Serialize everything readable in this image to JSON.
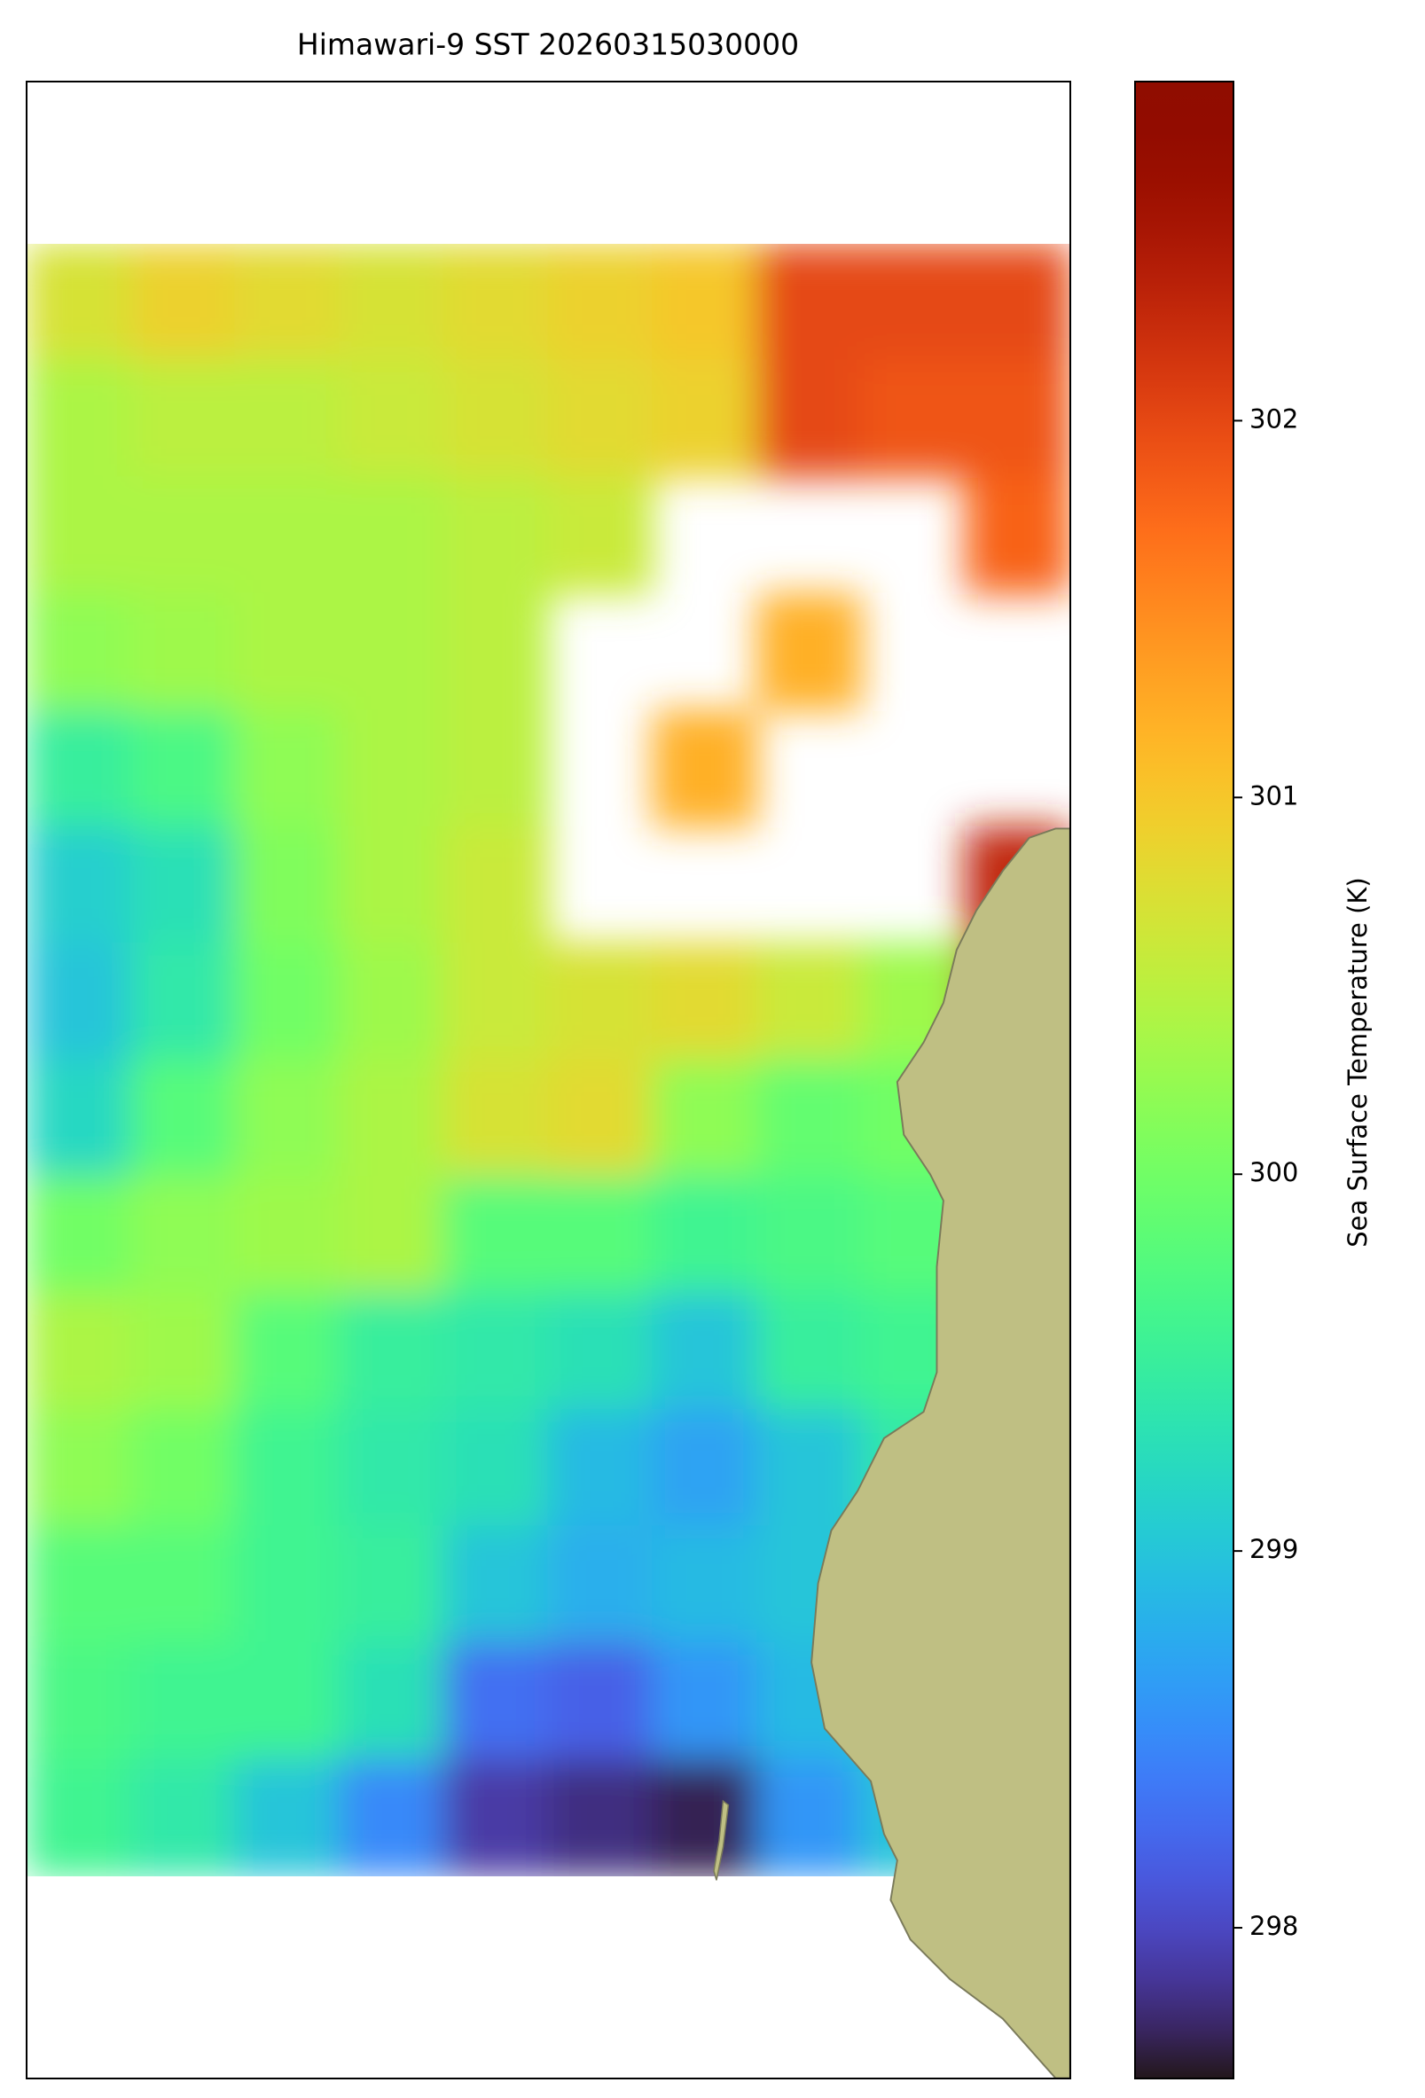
{
  "chart_data": {
    "type": "heatmap",
    "title": "Himawari-9 SST 20260315030000",
    "colormap": "turbo",
    "clim": [
      297.6,
      302.9
    ],
    "colorbar": {
      "label": "Sea Surface Temperature (K)",
      "ticks": [
        298,
        299,
        300,
        301,
        302
      ]
    },
    "values": [
      [
        300.7,
        300.9,
        300.8,
        300.7,
        300.8,
        300.9,
        301.0,
        302.0,
        302.0,
        302.0
      ],
      [
        300.4,
        300.5,
        300.5,
        300.6,
        300.7,
        300.8,
        300.9,
        302.0,
        301.9,
        301.9
      ],
      [
        300.4,
        300.4,
        300.4,
        300.4,
        300.5,
        300.6,
        null,
        null,
        null,
        301.8
      ],
      [
        300.2,
        300.3,
        300.4,
        300.4,
        300.5,
        null,
        null,
        301.2,
        null,
        null
      ],
      [
        299.5,
        299.7,
        300.2,
        300.4,
        300.5,
        null,
        301.2,
        null,
        null,
        null
      ],
      [
        299.1,
        299.3,
        300.1,
        300.4,
        300.6,
        null,
        null,
        null,
        null,
        302.3
      ],
      [
        299.0,
        299.4,
        300.0,
        300.3,
        300.6,
        300.7,
        300.8,
        300.6,
        300.3,
        302.5
      ],
      [
        299.2,
        299.8,
        300.2,
        300.4,
        300.7,
        300.8,
        300.2,
        299.9,
        300.0,
        300.0
      ],
      [
        300.0,
        300.2,
        300.3,
        300.4,
        299.8,
        299.8,
        299.6,
        299.7,
        299.8,
        300.0
      ],
      [
        300.4,
        300.3,
        299.8,
        299.5,
        299.4,
        299.3,
        299.0,
        299.5,
        299.6,
        299.8
      ],
      [
        300.2,
        300.0,
        299.6,
        299.4,
        299.3,
        298.9,
        298.7,
        299.0,
        299.4,
        299.5
      ],
      [
        299.8,
        299.8,
        299.6,
        299.5,
        299.0,
        298.8,
        298.9,
        299.0,
        299.2,
        299.5
      ],
      [
        299.7,
        299.6,
        299.6,
        299.3,
        298.3,
        298.2,
        298.6,
        298.9,
        299.2,
        299.5
      ],
      [
        299.6,
        299.4,
        299.0,
        298.5,
        297.9,
        297.8,
        297.7,
        298.6,
        299.0,
        299.5
      ]
    ]
  }
}
